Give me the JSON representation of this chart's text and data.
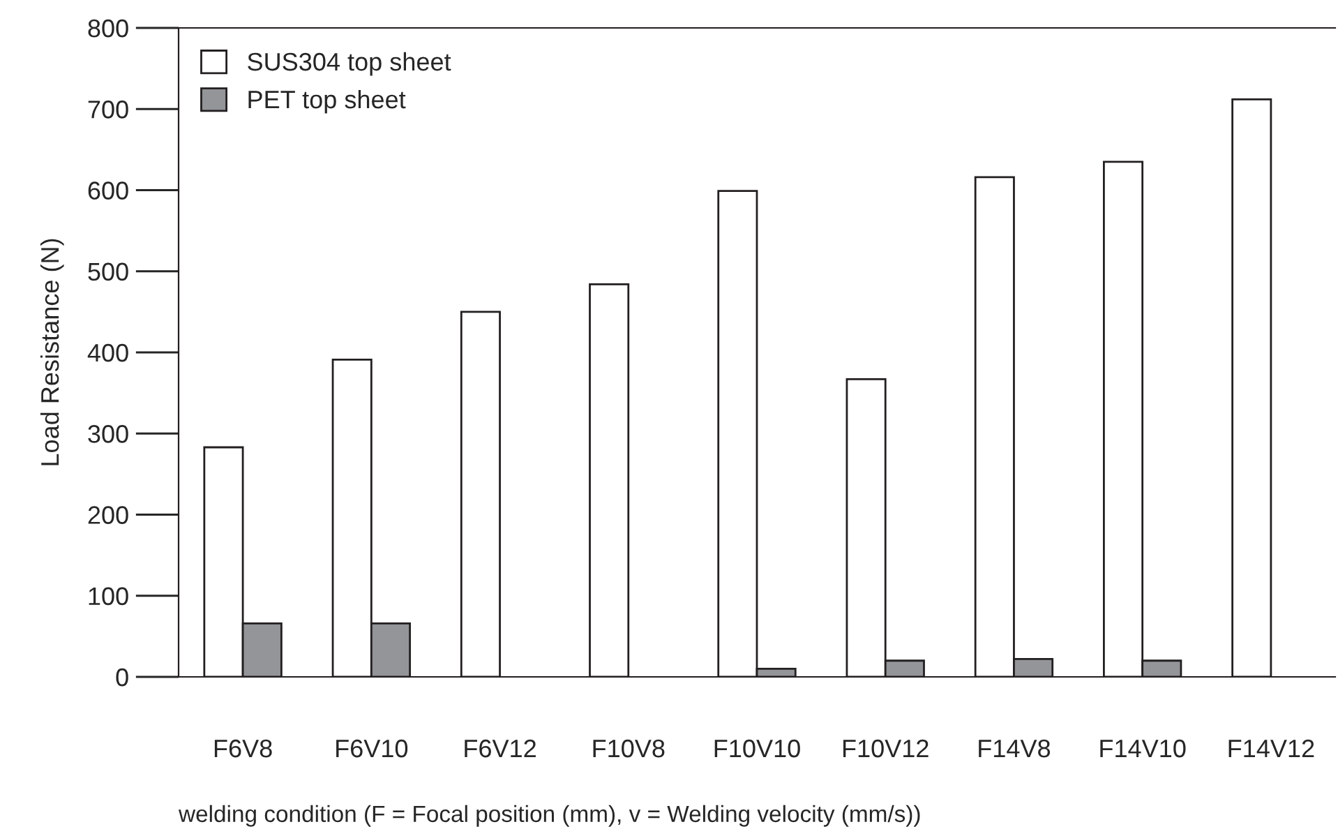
{
  "chart_data": {
    "type": "bar",
    "xlabel": "welding condition (F = Focal position (mm), v = Welding velocity (mm/s))",
    "ylabel": "Load Resistance (N)",
    "categories": [
      "F6V8",
      "F6V10",
      "F6V12",
      "F10V8",
      "F10V10",
      "F10V12",
      "F14V8",
      "F14V10",
      "F14V12"
    ],
    "series": [
      {
        "name": "SUS304 top sheet",
        "color": "#ffffff",
        "values": [
          283,
          391,
          450,
          484,
          599,
          367,
          616,
          635,
          712
        ]
      },
      {
        "name": "PET top sheet",
        "color": "#939598",
        "values": [
          66,
          66,
          null,
          null,
          10,
          20,
          22,
          20,
          null
        ]
      }
    ],
    "ylim": [
      0,
      800
    ],
    "yticks": [
      0,
      100,
      200,
      300,
      400,
      500,
      600,
      700,
      800
    ],
    "grid": false,
    "legend": "top left"
  }
}
